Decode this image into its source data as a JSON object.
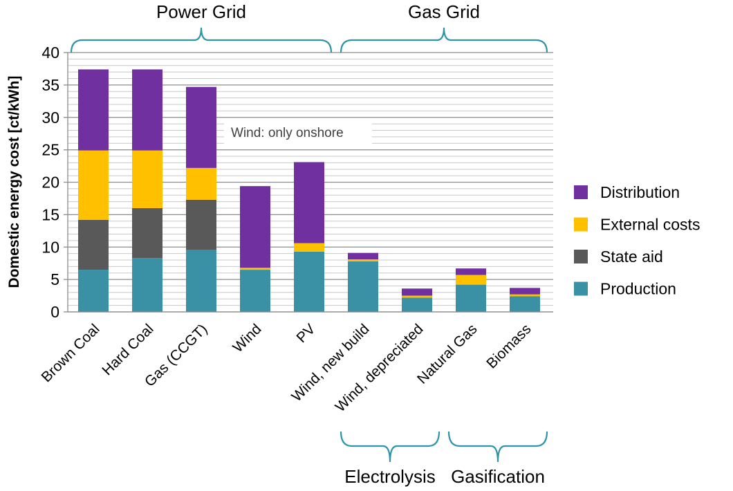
{
  "chart_data": {
    "type": "bar",
    "stacked": true,
    "ylabel": "Domestic energy cost [ct/kWh]",
    "ylim": [
      0,
      40
    ],
    "yticks": [
      0,
      5,
      10,
      15,
      20,
      25,
      30,
      35,
      40
    ],
    "minor_grid_step": 1,
    "grid": true,
    "legend_position": "right",
    "categories": [
      "Brown Coal",
      "Hard Coal",
      "Gas (CCGT)",
      "Wind",
      "PV",
      "Wind, new build",
      "Wind, depreciated",
      "Natural Gas",
      "Biomass"
    ],
    "series": [
      {
        "name": "Production",
        "color": "#3a91a6",
        "values": [
          6.5,
          8.3,
          9.6,
          6.5,
          9.3,
          7.8,
          2.2,
          4.2,
          2.4
        ]
      },
      {
        "name": "State aid",
        "color": "#595959",
        "values": [
          7.7,
          7.7,
          7.7,
          0,
          0,
          0,
          0,
          0,
          0
        ]
      },
      {
        "name": "External costs",
        "color": "#ffc000",
        "values": [
          10.7,
          8.9,
          4.9,
          0.3,
          1.3,
          0.3,
          0.3,
          1.5,
          0.3
        ]
      },
      {
        "name": "Distribution",
        "color": "#7030a0",
        "values": [
          12.5,
          12.5,
          12.5,
          12.6,
          12.5,
          1.0,
          1.1,
          1.0,
          1.0
        ]
      }
    ],
    "groups": [
      {
        "label": "Power Grid",
        "from": 0,
        "to": 4,
        "position": "top"
      },
      {
        "label": "Gas Grid",
        "from": 5,
        "to": 8,
        "position": "top"
      },
      {
        "label": "Electrolysis",
        "from": 5,
        "to": 6,
        "position": "bottom"
      },
      {
        "label": "Gasification",
        "from": 7,
        "to": 8,
        "position": "bottom"
      }
    ],
    "annotations": [
      {
        "text": "Wind: only onshore"
      }
    ],
    "legend_order": [
      "Distribution",
      "External costs",
      "State aid",
      "Production"
    ],
    "bracket_color": "#2e94a8"
  }
}
